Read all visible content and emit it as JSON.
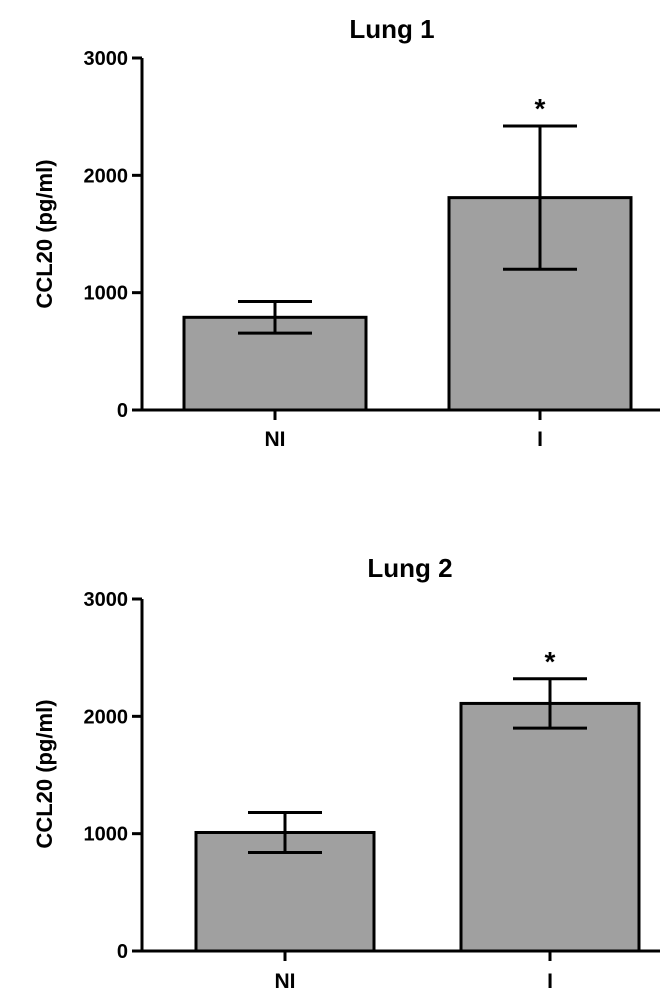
{
  "chart_data": [
    {
      "type": "bar",
      "title": "Lung 1",
      "ylabel": "CCL20 (pg/ml)",
      "xlabel": "",
      "categories": [
        "NI",
        "I"
      ],
      "values": [
        790,
        1810
      ],
      "errors": [
        135,
        610
      ],
      "significance": [
        "",
        "*"
      ],
      "ylim": [
        0,
        3000
      ],
      "yticks": [
        0,
        1000,
        2000,
        3000
      ],
      "grid": false,
      "bar_color": "#a0a0a0"
    },
    {
      "type": "bar",
      "title": "Lung 2",
      "ylabel": "CCL20 (pg/ml)",
      "xlabel": "",
      "categories": [
        "NI",
        "I"
      ],
      "values": [
        1010,
        2110
      ],
      "errors": [
        170,
        210
      ],
      "significance": [
        "",
        "*"
      ],
      "ylim": [
        0,
        3000
      ],
      "yticks": [
        0,
        1000,
        2000,
        3000
      ],
      "grid": false,
      "bar_color": "#a0a0a0"
    }
  ]
}
